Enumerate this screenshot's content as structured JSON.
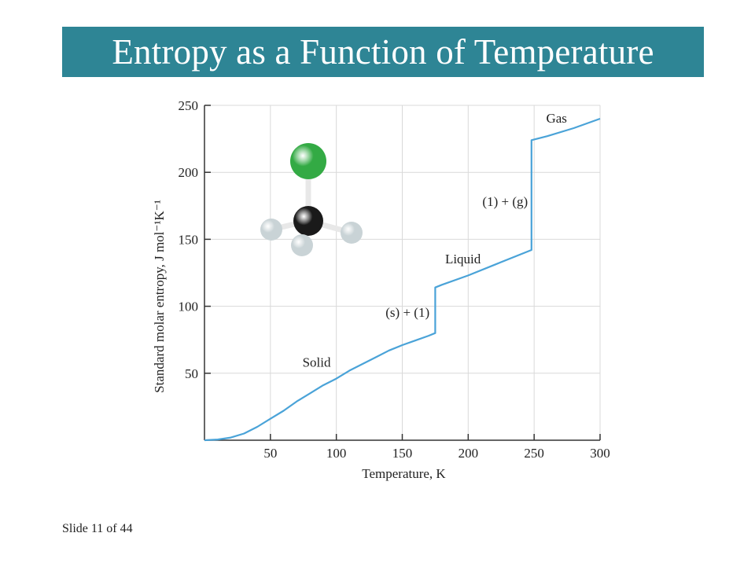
{
  "slide": {
    "title": "Entropy as a Function of Temperature",
    "footer": "Slide 11 of 44",
    "title_bar_color": "#2e8595"
  },
  "chart_data": {
    "type": "line",
    "title": "",
    "xlabel": "Temperature, K",
    "ylabel": "Standard molar entropy, J mol⁻¹K⁻¹",
    "xlim": [
      0,
      300
    ],
    "ylim": [
      0,
      250
    ],
    "xticks": [
      50,
      100,
      150,
      200,
      250,
      300
    ],
    "yticks": [
      50,
      100,
      150,
      200,
      250
    ],
    "grid": true,
    "line_color": "#4aa3d8",
    "series": [
      {
        "name": "",
        "x": [
          0,
          10,
          20,
          30,
          40,
          50,
          60,
          70,
          80,
          90,
          100,
          110,
          120,
          130,
          140,
          150,
          160,
          170,
          175,
          175,
          180,
          200,
          220,
          248,
          248,
          260,
          280,
          300
        ],
        "y": [
          0,
          0.5,
          2,
          5,
          10,
          16,
          22,
          29,
          35,
          41,
          46,
          52,
          57,
          62,
          67,
          71,
          74.5,
          78,
          80,
          114,
          116,
          123,
          131,
          142,
          224,
          227,
          233,
          240
        ]
      }
    ],
    "annotations": [
      {
        "text": "Solid",
        "x": 85,
        "y": 55
      },
      {
        "text": "(s) + (1)",
        "x": 154,
        "y": 92
      },
      {
        "text": "Liquid",
        "x": 196,
        "y": 132
      },
      {
        "text": "(1) + (g)",
        "x": 228,
        "y": 175
      },
      {
        "text": "Gas",
        "x": 267,
        "y": 237
      }
    ],
    "molecule": {
      "atoms": [
        "chlorine",
        "carbon",
        "hydrogen",
        "hydrogen",
        "hydrogen"
      ],
      "chlorine_color": "#33aa44",
      "carbon_color": "#1a1a1a",
      "hydrogen_color": "#c9d3d6"
    }
  }
}
